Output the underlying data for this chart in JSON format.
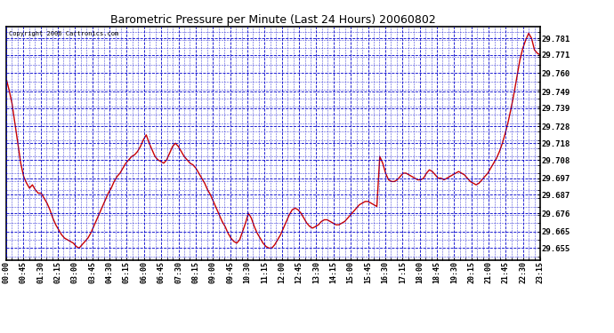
{
  "title": "Barometric Pressure per Minute (Last 24 Hours) 20060802",
  "copyright": "Copyright 2006 Cartronics.com",
  "yticks": [
    29.655,
    29.665,
    29.676,
    29.687,
    29.697,
    29.708,
    29.718,
    29.728,
    29.739,
    29.749,
    29.76,
    29.771,
    29.781
  ],
  "ylim": [
    29.648,
    29.788
  ],
  "background_color": "#ffffff",
  "plot_bg_color": "#ffffff",
  "line_color": "#cc0000",
  "grid_color": "#0000cc",
  "title_color": "#000000",
  "x_labels": [
    "00:00",
    "00:45",
    "01:30",
    "02:15",
    "03:00",
    "03:45",
    "04:30",
    "05:15",
    "06:00",
    "06:45",
    "07:30",
    "08:15",
    "09:00",
    "09:45",
    "10:30",
    "11:15",
    "12:00",
    "12:45",
    "13:30",
    "14:15",
    "15:00",
    "15:45",
    "16:30",
    "17:15",
    "18:00",
    "18:45",
    "19:30",
    "20:15",
    "21:00",
    "21:45",
    "22:30",
    "23:15"
  ],
  "pressure_data": [
    29.757,
    29.75,
    29.742,
    29.73,
    29.718,
    29.706,
    29.698,
    29.694,
    29.691,
    29.693,
    29.69,
    29.688,
    29.688,
    29.685,
    29.682,
    29.678,
    29.673,
    29.669,
    29.666,
    29.663,
    29.661,
    29.66,
    29.659,
    29.658,
    29.656,
    29.655,
    29.657,
    29.659,
    29.661,
    29.664,
    29.668,
    29.672,
    29.676,
    29.68,
    29.684,
    29.688,
    29.691,
    29.695,
    29.698,
    29.7,
    29.703,
    29.706,
    29.708,
    29.71,
    29.711,
    29.713,
    29.716,
    29.72,
    29.723,
    29.718,
    29.714,
    29.71,
    29.708,
    29.707,
    29.706,
    29.708,
    29.712,
    29.716,
    29.718,
    29.716,
    29.713,
    29.71,
    29.708,
    29.706,
    29.705,
    29.703,
    29.7,
    29.697,
    29.694,
    29.69,
    29.687,
    29.683,
    29.679,
    29.675,
    29.671,
    29.668,
    29.664,
    29.661,
    29.659,
    29.658,
    29.66,
    29.665,
    29.67,
    29.676,
    29.673,
    29.668,
    29.664,
    29.661,
    29.658,
    29.656,
    29.655,
    29.655,
    29.657,
    29.66,
    29.663,
    29.667,
    29.671,
    29.675,
    29.678,
    29.679,
    29.678,
    29.676,
    29.673,
    29.67,
    29.668,
    29.667,
    29.668,
    29.669,
    29.671,
    29.672,
    29.672,
    29.671,
    29.67,
    29.669,
    29.669,
    29.67,
    29.671,
    29.673,
    29.675,
    29.677,
    29.679,
    29.681,
    29.682,
    29.683,
    29.683,
    29.682,
    29.681,
    29.68,
    29.71,
    29.706,
    29.7,
    29.696,
    29.695,
    29.695,
    29.696,
    29.698,
    29.7,
    29.7,
    29.699,
    29.698,
    29.697,
    29.696,
    29.696,
    29.697,
    29.7,
    29.702,
    29.701,
    29.699,
    29.697,
    29.697,
    29.696,
    29.697,
    29.698,
    29.699,
    29.7,
    29.701,
    29.7,
    29.699,
    29.697,
    29.695,
    29.694,
    29.693,
    29.694,
    29.696,
    29.698,
    29.7,
    29.703,
    29.706,
    29.709,
    29.713,
    29.718,
    29.724,
    29.731,
    29.739,
    29.748,
    29.758,
    29.768,
    29.775,
    29.78,
    29.784,
    29.781,
    29.774,
    29.772,
    29.771
  ]
}
